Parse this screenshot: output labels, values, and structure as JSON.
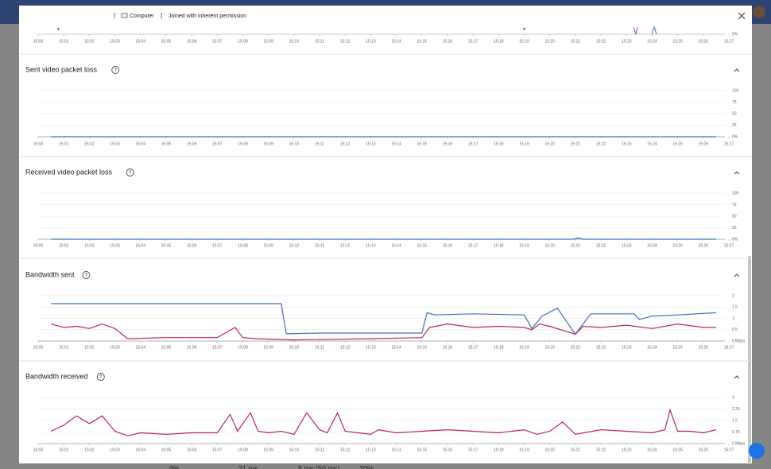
{
  "header": {
    "device": "Computer",
    "status": "Joined with inherent permission"
  },
  "timeline": {
    "label": "0%"
  },
  "xaxis": {
    "xlim": [
      0,
      27
    ],
    "xticks": [
      {
        "value": 0,
        "label": "15:00"
      },
      {
        "value": 1,
        "label": "15:01"
      },
      {
        "value": 2,
        "label": "15:02"
      },
      {
        "value": 3,
        "label": "15:03"
      },
      {
        "value": 4,
        "label": "15:04"
      },
      {
        "value": 5,
        "label": "15:05"
      },
      {
        "value": 6,
        "label": "15:06"
      },
      {
        "value": 7,
        "label": "15:07"
      },
      {
        "value": 8,
        "label": "15:08"
      },
      {
        "value": 9,
        "label": "15:09"
      },
      {
        "value": 10,
        "label": "15:10"
      },
      {
        "value": 11,
        "label": "15:11"
      },
      {
        "value": 12,
        "label": "15:12"
      },
      {
        "value": 13,
        "label": "15:13"
      },
      {
        "value": 14,
        "label": "15:14"
      },
      {
        "value": 15,
        "label": "15:15"
      },
      {
        "value": 16,
        "label": "15:16"
      },
      {
        "value": 17,
        "label": "15:17"
      },
      {
        "value": 18,
        "label": "15:18"
      },
      {
        "value": 19,
        "label": "15:19"
      },
      {
        "value": 20,
        "label": "15:20"
      },
      {
        "value": 21,
        "label": "15:21"
      },
      {
        "value": 22,
        "label": "15:22"
      },
      {
        "value": 23,
        "label": "15:23"
      },
      {
        "value": 24,
        "label": "15:24"
      },
      {
        "value": 25,
        "label": "15:25"
      },
      {
        "value": 26,
        "label": "15:26"
      },
      {
        "value": 27,
        "label": "15:27"
      }
    ]
  },
  "charts": [
    {
      "type": "line",
      "title": "Sent video packet loss",
      "ylim": [
        0,
        100
      ],
      "yticks": [
        {
          "value": 0,
          "label": "0%"
        },
        25,
        50,
        75,
        100
      ],
      "series": [
        {
          "color": "#3f6fc0",
          "x": [
            0.5,
            26.5
          ],
          "values": [
            0,
            0
          ]
        }
      ]
    },
    {
      "type": "line",
      "title": "Received video packet loss",
      "ylim": [
        0,
        100
      ],
      "yticks": [
        {
          "value": 0,
          "label": "0%"
        },
        25,
        50,
        75,
        100
      ],
      "series": [
        {
          "color": "#3f6fc0",
          "x": [
            0.5,
            20.9,
            21.1,
            21.3,
            26.5
          ],
          "values": [
            0,
            0,
            3,
            0,
            0
          ]
        }
      ]
    },
    {
      "type": "line",
      "title": "Bandwidth sent",
      "ylim": [
        0,
        2
      ],
      "yticks": [
        {
          "value": 0,
          "label": "0 Mbps"
        },
        0.5,
        1,
        1.5,
        2
      ],
      "series": [
        {
          "color": "#3f6fc0",
          "x": [
            0.5,
            9.5,
            9.7,
            11,
            15,
            15.2,
            15.5,
            17,
            19,
            19.3,
            19.7,
            20.3,
            20.6,
            21,
            21.3,
            21.6,
            23.3,
            23.5,
            24,
            25,
            26.5
          ],
          "values": [
            1.65,
            1.65,
            0.32,
            0.35,
            0.35,
            1.25,
            1.15,
            1.2,
            1.15,
            0.55,
            1.1,
            1.45,
            0.95,
            0.3,
            0.75,
            1.2,
            1.2,
            0.95,
            1.1,
            1.15,
            1.25
          ]
        },
        {
          "color": "#c0264a",
          "x": [
            0.5,
            1,
            1.5,
            2,
            2.5,
            3,
            3.5,
            5,
            7,
            7.7,
            8,
            8.5,
            10,
            13,
            15,
            15.3,
            16,
            17,
            18,
            19,
            19.3,
            19.6,
            20,
            21,
            21.3,
            22,
            23,
            24,
            25,
            26,
            26.5
          ],
          "values": [
            0.75,
            0.6,
            0.65,
            0.55,
            0.75,
            0.55,
            0.1,
            0.15,
            0.15,
            0.6,
            0.15,
            0.1,
            0.05,
            0.1,
            0.15,
            0.6,
            0.75,
            0.6,
            0.65,
            0.6,
            0.5,
            0.75,
            0.65,
            0.3,
            0.65,
            0.6,
            0.7,
            0.55,
            0.75,
            0.6,
            0.6
          ]
        }
      ]
    },
    {
      "type": "line",
      "title": "Bandwidth received",
      "ylim": [
        0,
        3
      ],
      "yticks": [
        {
          "value": 0,
          "label": "0 Mbps"
        },
        0.75,
        1.5,
        2.25,
        3
      ],
      "series": [
        {
          "color": "#c0264a",
          "x": [
            0.5,
            1,
            1.5,
            2,
            2.5,
            2.8,
            3,
            3.5,
            4,
            5,
            6,
            7,
            7.5,
            7.8,
            8,
            8.3,
            8.6,
            9,
            9.5,
            10,
            10.5,
            11,
            11.3,
            11.7,
            12,
            12.5,
            13,
            13.3,
            14,
            15,
            16,
            17,
            18,
            19,
            19.5,
            20,
            20.5,
            21,
            22,
            23,
            24,
            24.5,
            24.7,
            25,
            25.5,
            26,
            26.5
          ],
          "values": [
            0.8,
            1.2,
            1.8,
            1.3,
            1.8,
            1.2,
            0.8,
            0.5,
            0.7,
            0.6,
            0.7,
            0.7,
            1.9,
            0.8,
            1.3,
            2.0,
            0.8,
            0.7,
            0.8,
            0.6,
            2.0,
            0.9,
            0.7,
            2.0,
            0.8,
            0.7,
            0.6,
            0.9,
            0.7,
            0.8,
            0.9,
            0.8,
            0.7,
            0.9,
            0.6,
            0.8,
            1.4,
            0.6,
            0.9,
            0.8,
            0.7,
            0.9,
            2.2,
            0.8,
            0.8,
            0.7,
            0.9
          ]
        }
      ]
    }
  ],
  "background": {
    "stats": [
      "0%",
      "21 ms",
      "5 ms (50 ms)",
      "30%"
    ]
  }
}
